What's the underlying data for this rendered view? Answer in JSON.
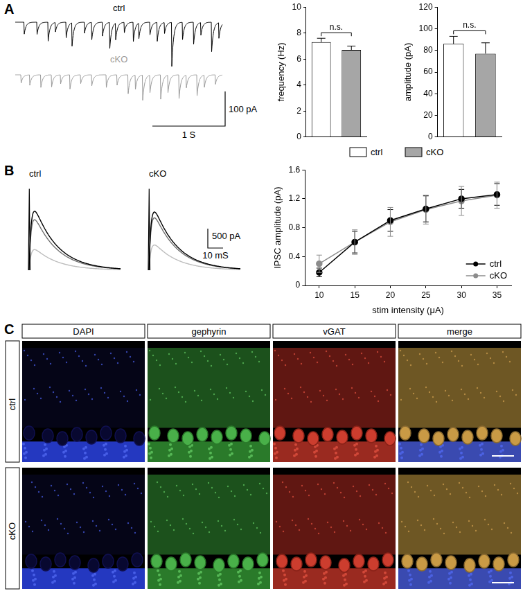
{
  "chart_data": [
    {
      "type": "bar",
      "categories": [
        "ctrl",
        "cKO"
      ],
      "values": [
        7.3,
        6.7
      ],
      "errors": [
        0.3,
        0.3
      ],
      "colors": [
        "#ffffff",
        "#a6a6a6"
      ],
      "y_label": "frequency (Hz)",
      "ylim": [
        0,
        10
      ],
      "yticks": [
        0,
        2,
        4,
        6,
        8,
        10
      ],
      "annotations": [
        "n.s."
      ],
      "tick_labels": "y",
      "grid": false
    },
    {
      "type": "bar",
      "categories": [
        "ctrl",
        "cKO"
      ],
      "values": [
        86,
        77
      ],
      "errors": [
        7,
        10
      ],
      "colors": [
        "#ffffff",
        "#a6a6a6"
      ],
      "y_label": "amplitude (pA)",
      "ylim": [
        0,
        120
      ],
      "yticks": [
        0,
        20,
        40,
        60,
        80,
        100,
        120
      ],
      "annotations": [
        "n.s."
      ],
      "tick_labels": "y",
      "grid": false,
      "legend": "bottom"
    },
    {
      "type": "line",
      "x_label": "stim intensity (μA)",
      "y_label": "IPSC amplitude (pA)",
      "x": [
        10,
        15,
        20,
        25,
        30,
        35
      ],
      "xlim": [
        8,
        37
      ],
      "xticks": [
        10,
        15,
        20,
        25,
        30,
        35
      ],
      "ylim": [
        0,
        1.6
      ],
      "yticks": [
        0,
        0.4,
        0.8,
        1.2,
        1.6
      ],
      "grid": false,
      "legend": "lower right",
      "series": [
        {
          "name": "ctrl",
          "color": "#000000",
          "marker": "circle",
          "values": [
            0.18,
            0.6,
            0.9,
            1.06,
            1.2,
            1.26
          ],
          "errors": [
            0.06,
            0.15,
            0.15,
            0.18,
            0.13,
            0.15
          ]
        },
        {
          "name": "cKO",
          "color": "#8c8c8c",
          "marker": "circle",
          "values": [
            0.3,
            0.6,
            0.88,
            1.05,
            1.17,
            1.25
          ],
          "errors": [
            0.12,
            0.17,
            0.2,
            0.2,
            0.2,
            0.18
          ]
        }
      ]
    }
  ],
  "panels": [
    {
      "label": "A",
      "traces": {
        "duration_s": 2.85,
        "decay_ms": 25,
        "series": [
          {
            "name": "ctrl",
            "color": "#000000",
            "events": [
              [
                0.12,
                40
              ],
              [
                0.3,
                35
              ],
              [
                0.45,
                60
              ],
              [
                0.55,
                30
              ],
              [
                0.7,
                45
              ],
              [
                0.78,
                70
              ],
              [
                0.95,
                35
              ],
              [
                1.05,
                55
              ],
              [
                1.2,
                40
              ],
              [
                1.3,
                75
              ],
              [
                1.38,
                50
              ],
              [
                1.5,
                30
              ],
              [
                1.62,
                65
              ],
              [
                1.7,
                45
              ],
              [
                1.85,
                40
              ],
              [
                1.95,
                60
              ],
              [
                2.05,
                35
              ],
              [
                2.15,
                140
              ],
              [
                2.3,
                50
              ],
              [
                2.45,
                70
              ],
              [
                2.55,
                40
              ],
              [
                2.7,
                85
              ],
              [
                2.8,
                45
              ]
            ]
          },
          {
            "name": "cKO",
            "color": "#9a9a9a",
            "events": [
              [
                0.08,
                25
              ],
              [
                0.2,
                30
              ],
              [
                0.35,
                40
              ],
              [
                0.5,
                35
              ],
              [
                0.62,
                30
              ],
              [
                0.75,
                45
              ],
              [
                0.9,
                25
              ],
              [
                1.05,
                35
              ],
              [
                1.25,
                40
              ],
              [
                1.4,
                30
              ],
              [
                1.55,
                60
              ],
              [
                1.65,
                45
              ],
              [
                1.75,
                80
              ],
              [
                1.85,
                55
              ],
              [
                2.0,
                70
              ],
              [
                2.1,
                50
              ],
              [
                2.25,
                75
              ],
              [
                2.35,
                40
              ],
              [
                2.5,
                60
              ],
              [
                2.6,
                35
              ],
              [
                2.75,
                30
              ]
            ]
          }
        ],
        "scale_bar": {
          "y": {
            "value": 100,
            "label": "100 pA"
          },
          "x": {
            "value": 1,
            "label": "1 S"
          }
        }
      }
    },
    {
      "label": "B",
      "traces": {
        "duration_ms": 60,
        "rise_ms": 1.5,
        "decay_ms": 15,
        "stim_artifact_pA": 2100,
        "series": [
          {
            "name": "ctrl",
            "traces": [
              {
                "color": "#000000",
                "peak_pA": 1520
              },
              {
                "color": "#707070",
                "peak_pA": 1300
              },
              {
                "color": "#bdbdbd",
                "peak_pA": 530
              }
            ]
          },
          {
            "name": "cKO",
            "traces": [
              {
                "color": "#000000",
                "peak_pA": 1500
              },
              {
                "color": "#707070",
                "peak_pA": 1350
              },
              {
                "color": "#bdbdbd",
                "peak_pA": 650
              }
            ]
          }
        ],
        "scale_bar": {
          "y": {
            "value": 500,
            "label": "500 pA"
          },
          "x": {
            "value": 10,
            "label": "10 mS"
          }
        }
      }
    },
    {
      "label": "C",
      "images": {
        "columns": [
          "DAPI",
          "gephyrin",
          "vGAT",
          "merge"
        ],
        "rows": [
          "ctrl",
          "cKO"
        ]
      }
    }
  ]
}
